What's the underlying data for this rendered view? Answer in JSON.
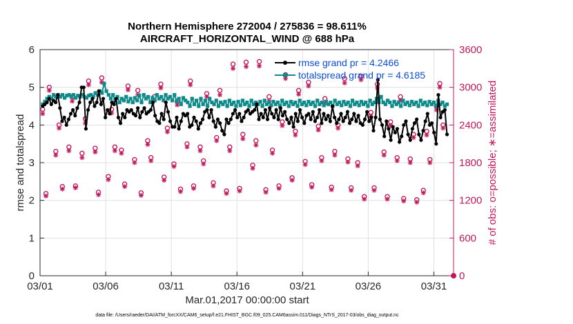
{
  "chart_data": {
    "type": "line",
    "title": "Northern Hemisphere 272004 / 275836 = 98.611%",
    "subtitle": "AIRCRAFT_HORIZONTAL_WIND @ 688 hPa",
    "xlabel": "Mar.01,2017 00:00:00 start",
    "ylabel_left": "rmse and totalspread",
    "ylabel_right": "# of obs: o=possible; ∗=assimilated",
    "footnote": "data file: /Users/raeder/DAI/ATM_forcXX/CAM6_setup/f.e21.FHIST_BGC.f09_025.CAM6assim.011/Diags_NTrS_2017-03/obs_diag_output.nc",
    "xlim": [
      0,
      31.5
    ],
    "ylim_left": [
      0,
      6
    ],
    "ylim_right": [
      0,
      3600
    ],
    "x_ticks": [
      0,
      5,
      10,
      15,
      20,
      25,
      30
    ],
    "x_tick_labels": [
      "03/01",
      "03/06",
      "03/11",
      "03/16",
      "03/21",
      "03/26",
      "03/31"
    ],
    "y_ticks_left": [
      "0",
      "1",
      "2",
      "3",
      "4",
      "5",
      "6"
    ],
    "y_ticks_right": [
      "0",
      "600",
      "1200",
      "1800",
      "2400",
      "3000",
      "3600"
    ],
    "grid": true,
    "legend_position": "top-right",
    "colors": {
      "rmse": "#000000",
      "totalspread": "#0f8a8a",
      "obs": "#c2185b",
      "legend_text": "#0a4fd8"
    },
    "series": [
      {
        "name": "rmse grand pr = 4.2466",
        "axis": "left",
        "values": [
          4.5,
          4.55,
          4.6,
          4.7,
          4.55,
          4.65,
          4.6,
          4.8,
          4.45,
          4.1,
          4.2,
          4.0,
          4.15,
          4.3,
          4.4,
          4.25,
          4.45,
          4.6,
          5.0,
          5.0,
          3.9,
          4.4,
          4.6,
          4.7,
          4.5,
          4.6,
          4.9,
          4.55,
          4.7,
          4.2,
          4.4,
          4.3,
          4.6,
          4.55,
          4.7,
          4.2,
          4.05,
          4.3,
          4.2,
          4.4,
          4.35,
          4.4,
          4.3,
          4.25,
          4.45,
          4.2,
          4.35,
          4.45,
          4.3,
          4.35,
          4.4,
          4.6,
          4.25,
          4.1,
          4.05,
          4.3,
          4.15,
          4.6,
          4.35,
          4.1,
          3.95,
          3.95,
          4.2,
          3.9,
          4.1,
          4.3,
          4.25,
          4.3,
          3.95,
          4.0,
          4.2,
          4.1,
          3.9,
          4.05,
          4.15,
          4.35,
          4.4,
          4.2,
          4.4,
          4.1,
          3.95,
          4.15,
          4.05,
          3.85,
          3.75,
          4.15,
          4.05,
          4.15,
          4.3,
          4.4,
          4.2,
          4.3,
          4.1,
          4.2,
          4.35,
          4.4,
          4.3,
          4.35,
          4.4,
          4.55,
          4.15,
          4.3,
          4.2,
          4.4,
          4.15,
          4.45,
          4.3,
          4.2,
          4.4,
          4.15,
          4.45,
          4.25,
          4.35,
          4.15,
          4.05,
          4.2,
          3.95,
          4.3,
          4.1,
          4.4,
          4.2,
          4.05,
          4.25,
          4.3,
          4.15,
          4.35,
          4.1,
          4.2,
          4.4,
          4.05,
          4.3,
          4.15,
          4.25,
          4.1,
          4.5,
          4.2,
          4.05,
          4.15,
          4.3,
          4.1,
          4.2,
          4.35,
          4.05,
          4.15,
          4.3,
          4.1,
          4.25,
          4.05,
          4.0,
          4.15,
          4.35,
          4.1,
          4.2,
          3.85,
          4.2,
          5.2,
          4.15,
          4.0,
          3.7,
          4.1,
          3.9,
          3.6,
          3.95,
          3.8,
          3.9,
          3.55,
          3.7,
          4.0,
          4.1,
          3.75,
          3.6,
          3.9,
          4.05,
          4.15,
          3.75,
          3.6,
          3.85,
          4.1,
          4.3,
          4.0,
          4.05,
          3.8,
          3.5,
          4.8,
          4.2,
          4.35,
          4.4,
          3.75
        ],
        "marker": "filled-dot"
      },
      {
        "name": "totalspread grand pr = 4.6185",
        "axis": "left",
        "values": [
          4.55,
          4.62,
          4.7,
          4.75,
          4.7,
          4.8,
          4.75,
          4.8,
          4.75,
          4.8,
          4.72,
          4.78,
          4.8,
          4.75,
          4.8,
          4.72,
          4.78,
          4.75,
          4.8,
          4.75,
          4.72,
          4.78,
          4.8,
          4.75,
          4.85,
          4.8,
          4.9,
          4.85,
          5.1,
          4.9,
          4.8,
          4.7,
          4.8,
          4.65,
          4.75,
          4.6,
          4.7,
          4.65,
          4.75,
          4.62,
          4.7,
          4.6,
          4.72,
          4.65,
          4.78,
          4.6,
          4.8,
          4.7,
          4.75,
          4.6,
          4.72,
          4.65,
          4.8,
          4.7,
          4.75,
          4.65,
          4.8,
          4.7,
          4.75,
          4.65,
          4.8,
          4.62,
          4.7,
          4.55,
          4.72,
          4.65,
          4.6,
          4.5,
          4.7,
          4.55,
          4.65,
          4.5,
          4.7,
          4.55,
          4.65,
          4.5,
          4.7,
          4.6,
          4.55,
          4.65,
          4.5,
          4.6,
          4.55,
          4.62,
          4.5,
          4.65,
          4.55,
          4.6,
          4.5,
          4.62,
          4.52,
          4.65,
          4.55,
          4.6,
          4.5,
          4.65,
          4.55,
          4.6,
          4.55,
          4.62,
          4.5,
          4.65,
          4.55,
          4.6,
          4.52,
          4.62,
          4.55,
          4.6,
          4.5,
          4.65,
          4.55,
          4.6,
          4.5,
          4.62,
          4.55,
          4.6,
          4.5,
          4.65,
          4.55,
          4.6,
          4.52,
          4.62,
          4.55,
          4.6,
          4.5,
          4.65,
          4.55,
          4.6,
          4.52,
          4.62,
          4.55,
          4.6,
          4.5,
          4.65,
          4.55,
          4.6,
          4.52,
          4.62,
          4.55,
          4.6,
          4.5,
          4.65,
          4.55,
          4.6,
          4.52,
          4.62,
          4.55,
          4.6,
          4.5,
          4.65,
          4.55,
          4.6,
          4.7,
          4.6,
          4.75,
          4.6,
          4.55,
          4.65,
          4.6,
          4.5,
          4.62,
          4.55,
          4.6,
          4.5,
          4.65,
          4.55,
          4.6,
          4.52,
          4.62,
          4.55,
          4.6,
          4.5,
          4.65,
          4.55,
          4.6,
          4.52,
          4.62,
          4.55,
          4.6,
          4.5,
          4.65,
          4.55,
          4.6,
          4.5,
          4.55
        ],
        "marker": "filled-square"
      },
      {
        "name": "obs possible",
        "axis": "right",
        "x": [
          0.2,
          0.45,
          0.7,
          1.2,
          1.45,
          1.7,
          2.2,
          2.45,
          2.7,
          3.2,
          3.45,
          3.7,
          4.2,
          4.45,
          4.7,
          5.2,
          5.45,
          5.7,
          6.2,
          6.45,
          6.7,
          7.2,
          7.45,
          7.7,
          8.2,
          8.45,
          8.7,
          9.2,
          9.45,
          9.7,
          10.2,
          10.45,
          10.7,
          11.2,
          11.45,
          11.7,
          12.2,
          12.45,
          12.7,
          13.2,
          13.45,
          13.7,
          14.2,
          14.45,
          14.7,
          15.2,
          15.45,
          15.7,
          16.2,
          16.45,
          16.7,
          17.2,
          17.45,
          17.7,
          18.2,
          18.45,
          18.7,
          19.2,
          19.45,
          19.7,
          20.2,
          20.45,
          20.7,
          21.2,
          21.45,
          21.7,
          22.2,
          22.45,
          22.7,
          23.2,
          23.45,
          23.7,
          24.2,
          24.45,
          24.7,
          25.2,
          25.45,
          25.7,
          26.2,
          26.45,
          26.7,
          27.2,
          27.45,
          27.7,
          28.2,
          28.45,
          28.7,
          29.2,
          29.45,
          29.7,
          30.2,
          30.45,
          30.7
        ],
        "values": [
          2650,
          1310,
          3000,
          1980,
          2400,
          1420,
          2050,
          2850,
          1430,
          1950,
          2500,
          3100,
          2030,
          1330,
          3150,
          1580,
          2650,
          2050,
          2000,
          1460,
          3020,
          1850,
          2950,
          1320,
          2150,
          1880,
          2850,
          3050,
          1570,
          2350,
          1780,
          2780,
          1380,
          2100,
          3100,
          1430,
          2050,
          1830,
          2900,
          1480,
          2200,
          2950,
          1350,
          2050,
          3370,
          1390,
          2250,
          3400,
          1760,
          2150,
          3410,
          1370,
          2850,
          2000,
          1430,
          2450,
          3200,
          1560,
          2300,
          2950,
          1820,
          3080,
          1450,
          2380,
          1880,
          2820,
          1410,
          1980,
          2400,
          3140,
          1860,
          1400,
          1800,
          3180,
          1260,
          2600,
          1400,
          3050,
          1970,
          1260,
          2450,
          1880,
          2850,
          1230,
          1860,
          2250,
          1210,
          1360,
          2300,
          1850,
          2700,
          3060,
          2400
        ],
        "marker": "open-circle"
      },
      {
        "name": "obs assimilated",
        "axis": "right",
        "x": [
          0.2,
          0.45,
          0.7,
          1.2,
          1.45,
          1.7,
          2.2,
          2.45,
          2.7,
          3.2,
          3.45,
          3.7,
          4.2,
          4.45,
          4.7,
          5.2,
          5.45,
          5.7,
          6.2,
          6.45,
          6.7,
          7.2,
          7.45,
          7.7,
          8.2,
          8.45,
          8.7,
          9.2,
          9.45,
          9.7,
          10.2,
          10.45,
          10.7,
          11.2,
          11.45,
          11.7,
          12.2,
          12.45,
          12.7,
          13.2,
          13.45,
          13.7,
          14.2,
          14.45,
          14.7,
          15.2,
          15.45,
          15.7,
          16.2,
          16.45,
          16.7,
          17.2,
          17.45,
          17.7,
          18.2,
          18.45,
          18.7,
          19.2,
          19.45,
          19.7,
          20.2,
          20.45,
          20.7,
          21.2,
          21.45,
          21.7,
          22.2,
          22.45,
          22.7,
          23.2,
          23.45,
          23.7,
          24.2,
          24.45,
          24.7,
          25.2,
          25.45,
          25.7,
          26.2,
          26.45,
          26.7,
          27.2,
          27.45,
          27.7,
          28.2,
          28.45,
          28.7,
          29.2,
          29.45,
          29.7,
          30.2,
          30.45,
          30.7
        ],
        "values": [
          2580,
          1270,
          2950,
          1920,
          2350,
          1380,
          1990,
          2780,
          1400,
          1880,
          2430,
          3040,
          1970,
          1290,
          3080,
          1530,
          2590,
          1990,
          1950,
          1420,
          2960,
          1800,
          2880,
          1280,
          2090,
          1830,
          2790,
          2990,
          1520,
          2290,
          1740,
          2720,
          1340,
          2050,
          3040,
          1390,
          1990,
          1780,
          2850,
          1430,
          2150,
          2880,
          1310,
          1990,
          3300,
          1350,
          2180,
          3330,
          1710,
          2080,
          3340,
          1330,
          2780,
          1950,
          1390,
          2390,
          3140,
          1520,
          2240,
          2890,
          1770,
          3020,
          1410,
          2320,
          1830,
          2750,
          1370,
          1920,
          2350,
          3070,
          1810,
          1360,
          1750,
          3120,
          1220,
          2540,
          1360,
          2990,
          1920,
          1220,
          2390,
          1830,
          2790,
          1190,
          1800,
          2200,
          1170,
          1320,
          2240,
          1800,
          2640,
          3000,
          2350
        ],
        "marker": "asterisk"
      }
    ]
  }
}
